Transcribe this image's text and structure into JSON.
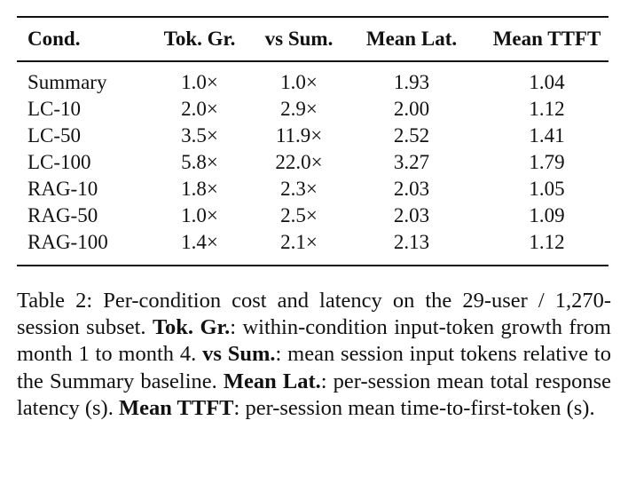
{
  "table": {
    "headers": [
      "Cond.",
      "Tok. Gr.",
      "vs Sum.",
      "Mean Lat.",
      "Mean TTFT"
    ],
    "rows": [
      [
        "Summary",
        "1.0×",
        "1.0×",
        "1.93",
        "1.04"
      ],
      [
        "LC-10",
        "2.0×",
        "2.9×",
        "2.00",
        "1.12"
      ],
      [
        "LC-50",
        "3.5×",
        "11.9×",
        "2.52",
        "1.41"
      ],
      [
        "LC-100",
        "5.8×",
        "22.0×",
        "3.27",
        "1.79"
      ],
      [
        "RAG-10",
        "1.8×",
        "2.3×",
        "2.03",
        "1.05"
      ],
      [
        "RAG-50",
        "1.0×",
        "2.5×",
        "2.03",
        "1.09"
      ],
      [
        "RAG-100",
        "1.4×",
        "2.1×",
        "2.13",
        "1.12"
      ]
    ]
  },
  "caption": {
    "intro": "Table 2: Per-condition cost and latency on the 29-user / 1,270-session subset.",
    "term1": "Tok. Gr.",
    "def1": ": within-condition input-token growth from month 1 to month 4.",
    "term2": "vs Sum.",
    "def2": ": mean session input tokens relative to the Summary baseline.",
    "term3": "Mean Lat.",
    "def3": ": per-session mean total response latency (s).",
    "term4": "Mean TTFT",
    "def4": ": per-session mean time-to-first-token (s)."
  }
}
